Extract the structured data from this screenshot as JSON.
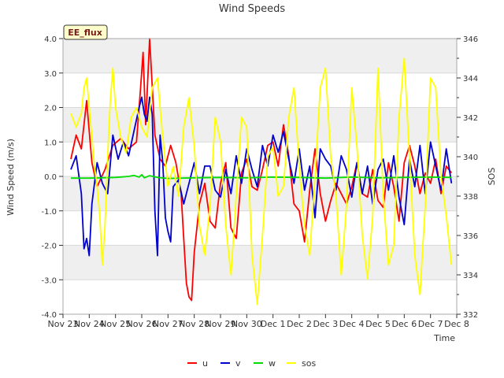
{
  "chart_data": {
    "type": "line",
    "title": "Wind Speeds",
    "badge": "EE_flux",
    "xlabel": "Time",
    "ylabel": "Wind Speed (m/s)",
    "y2label": "SOS",
    "ylim": [
      -4,
      4
    ],
    "y2lim": [
      332,
      346
    ],
    "xlim": [
      0,
      15
    ],
    "x_ticks": [
      {
        "x": 0,
        "label": "Nov 23"
      },
      {
        "x": 1,
        "label": "Nov 24"
      },
      {
        "x": 2,
        "label": "Nov 25"
      },
      {
        "x": 3,
        "label": "Nov 26"
      },
      {
        "x": 4,
        "label": "Nov 27"
      },
      {
        "x": 5,
        "label": "Nov 28"
      },
      {
        "x": 6,
        "label": "Nov 29"
      },
      {
        "x": 7,
        "label": "Nov 30"
      },
      {
        "x": 8,
        "label": "Dec 1"
      },
      {
        "x": 9,
        "label": "Dec 2"
      },
      {
        "x": 10,
        "label": "Dec 3"
      },
      {
        "x": 11,
        "label": "Dec 4"
      },
      {
        "x": 12,
        "label": "Dec 5"
      },
      {
        "x": 13,
        "label": "Dec 6"
      },
      {
        "x": 14,
        "label": "Dec 7"
      },
      {
        "x": 15,
        "label": "Dec 8"
      }
    ],
    "y_ticks": [
      {
        "v": 4,
        "label": "4.0"
      },
      {
        "v": 3,
        "label": "3.0"
      },
      {
        "v": 2,
        "label": "2.0"
      },
      {
        "v": 1,
        "label": "1.0"
      },
      {
        "v": 0,
        "label": "0.0"
      },
      {
        "v": -1,
        "label": "-1.0"
      },
      {
        "v": -2,
        "label": "-2.0"
      },
      {
        "v": -3,
        "label": "-3.0"
      },
      {
        "v": -4,
        "label": "-4.0"
      }
    ],
    "y2_ticks": [
      {
        "v": 332,
        "label": "332"
      },
      {
        "v": 334,
        "label": "334"
      },
      {
        "v": 336,
        "label": "336"
      },
      {
        "v": 338,
        "label": "338"
      },
      {
        "v": 340,
        "label": "340"
      },
      {
        "v": 342,
        "label": "342"
      },
      {
        "v": 344,
        "label": "344"
      },
      {
        "v": 346,
        "label": "346"
      }
    ],
    "grid": true,
    "legend_position": "bottom-center",
    "series": [
      {
        "name": "u",
        "axis": "left",
        "color": "#ff0000",
        "x": [
          0.3,
          0.5,
          0.7,
          0.9,
          1.1,
          1.3,
          1.6,
          1.9,
          2.2,
          2.5,
          2.8,
          2.95,
          3.05,
          3.15,
          3.3,
          3.5,
          3.7,
          3.9,
          4.1,
          4.3,
          4.5,
          4.6,
          4.7,
          4.8,
          4.9,
          5.0,
          5.2,
          5.4,
          5.6,
          5.8,
          6.0,
          6.2,
          6.4,
          6.6,
          6.8,
          7.0,
          7.2,
          7.4,
          7.6,
          7.8,
          8.0,
          8.2,
          8.4,
          8.6,
          8.8,
          9.0,
          9.2,
          9.4,
          9.6,
          9.8,
          10.0,
          10.2,
          10.4,
          10.6,
          10.8,
          11.0,
          11.2,
          11.4,
          11.6,
          11.8,
          12.0,
          12.2,
          12.4,
          12.6,
          12.8,
          13.0,
          13.2,
          13.4,
          13.6,
          13.8,
          14.0,
          14.2,
          14.4,
          14.6,
          14.8
        ],
        "y": [
          0.5,
          1.2,
          0.8,
          2.2,
          0.4,
          -0.3,
          0.2,
          0.9,
          1.1,
          0.8,
          1.0,
          2.5,
          3.6,
          1.5,
          4.0,
          1.2,
          0.5,
          0.3,
          0.9,
          0.4,
          -0.5,
          -1.8,
          -3.1,
          -3.5,
          -3.6,
          -2.2,
          -0.8,
          -0.2,
          -1.3,
          -1.5,
          -0.2,
          0.4,
          -1.5,
          -1.8,
          0.1,
          0.5,
          -0.3,
          -0.4,
          0.2,
          0.9,
          1.0,
          0.3,
          1.5,
          0.6,
          -0.8,
          -1.0,
          -1.9,
          -0.4,
          0.8,
          -0.5,
          -1.3,
          -0.7,
          -0.2,
          -0.5,
          -0.8,
          -0.3,
          0.4,
          -0.5,
          -0.6,
          0.2,
          -0.7,
          -0.9,
          0.4,
          -0.3,
          -1.3,
          0.4,
          0.9,
          0.3,
          -0.5,
          0.1,
          -0.2,
          0.5,
          -0.5,
          0.3,
          0.1
        ]
      },
      {
        "name": "v",
        "axis": "left",
        "color": "#0000cc",
        "x": [
          0.3,
          0.5,
          0.7,
          0.8,
          0.9,
          1.0,
          1.1,
          1.3,
          1.5,
          1.7,
          1.9,
          2.1,
          2.3,
          2.5,
          2.7,
          2.9,
          3.0,
          3.1,
          3.2,
          3.3,
          3.4,
          3.5,
          3.6,
          3.7,
          3.8,
          3.9,
          4.0,
          4.1,
          4.2,
          4.4,
          4.6,
          4.8,
          5.0,
          5.2,
          5.4,
          5.6,
          5.8,
          6.0,
          6.2,
          6.4,
          6.6,
          6.8,
          7.0,
          7.2,
          7.4,
          7.6,
          7.8,
          8.0,
          8.2,
          8.4,
          8.6,
          8.8,
          9.0,
          9.2,
          9.4,
          9.6,
          9.8,
          10.0,
          10.2,
          10.4,
          10.6,
          10.8,
          11.0,
          11.2,
          11.4,
          11.6,
          11.8,
          12.0,
          12.2,
          12.4,
          12.6,
          12.8,
          13.0,
          13.2,
          13.4,
          13.6,
          13.8,
          14.0,
          14.2,
          14.4,
          14.6,
          14.8
        ],
        "y": [
          0.2,
          0.6,
          -0.5,
          -2.1,
          -1.8,
          -2.3,
          -0.8,
          0.4,
          -0.2,
          -0.5,
          1.2,
          0.5,
          1.0,
          0.6,
          1.3,
          2.0,
          2.3,
          1.8,
          1.6,
          2.3,
          1.8,
          -1.0,
          -2.3,
          1.2,
          0.4,
          -1.2,
          -1.6,
          -1.9,
          -0.3,
          -0.1,
          -0.8,
          -0.2,
          0.4,
          -0.5,
          0.3,
          0.3,
          -0.4,
          -0.6,
          0.2,
          -0.5,
          0.6,
          -0.2,
          0.8,
          0.2,
          -0.3,
          0.9,
          0.3,
          1.2,
          0.7,
          1.3,
          0.5,
          -0.2,
          0.8,
          -0.4,
          0.3,
          -1.2,
          0.8,
          0.5,
          0.3,
          -0.4,
          0.6,
          0.2,
          -0.6,
          0.4,
          -0.5,
          0.3,
          -0.8,
          0.2,
          0.5,
          -0.4,
          0.6,
          -0.6,
          -1.4,
          0.5,
          -0.3,
          0.9,
          -0.5,
          1.0,
          0.3,
          -0.4,
          0.8,
          -0.2
        ]
      },
      {
        "name": "w",
        "axis": "left",
        "color": "#00dd00",
        "x": [
          0.3,
          1.0,
          2.0,
          2.5,
          2.7,
          2.9,
          3.0,
          3.1,
          3.3,
          3.6,
          4.0,
          5.0,
          6.0,
          7.0,
          8.0,
          9.0,
          10.0,
          11.0,
          12.0,
          13.0,
          14.0,
          14.8
        ],
        "y": [
          -0.05,
          -0.05,
          -0.03,
          0.0,
          0.03,
          -0.02,
          0.05,
          -0.04,
          0.02,
          -0.03,
          -0.06,
          -0.04,
          -0.03,
          -0.04,
          -0.02,
          -0.03,
          -0.05,
          -0.02,
          -0.04,
          -0.03,
          -0.02,
          -0.03
        ]
      },
      {
        "name": "sos",
        "axis": "right",
        "color": "#ffff00",
        "x": [
          0.3,
          0.5,
          0.7,
          0.8,
          0.9,
          1.0,
          1.1,
          1.2,
          1.3,
          1.4,
          1.5,
          1.6,
          1.7,
          1.8,
          1.9,
          2.0,
          2.2,
          2.4,
          2.6,
          2.8,
          3.0,
          3.2,
          3.4,
          3.6,
          3.8,
          4.0,
          4.2,
          4.4,
          4.6,
          4.8,
          5.0,
          5.2,
          5.4,
          5.6,
          5.8,
          6.0,
          6.2,
          6.4,
          6.6,
          6.8,
          7.0,
          7.2,
          7.4,
          7.6,
          7.8,
          8.0,
          8.2,
          8.4,
          8.6,
          8.8,
          9.0,
          9.2,
          9.4,
          9.6,
          9.8,
          10.0,
          10.2,
          10.4,
          10.6,
          10.8,
          11.0,
          11.2,
          11.4,
          11.6,
          11.8,
          12.0,
          12.2,
          12.4,
          12.6,
          12.8,
          13.0,
          13.2,
          13.4,
          13.6,
          13.8,
          14.0,
          14.2,
          14.4,
          14.6,
          14.8
        ],
        "y": [
          342.2,
          341.5,
          342.2,
          343.5,
          344.0,
          342.5,
          341.0,
          339.5,
          338.5,
          337.0,
          334.5,
          336.5,
          340.0,
          342.8,
          344.5,
          342.5,
          341.0,
          340.2,
          342.0,
          342.5,
          341.5,
          341.0,
          343.5,
          344.0,
          341.0,
          338.5,
          339.5,
          338.0,
          341.5,
          343.0,
          340.5,
          336.5,
          335.0,
          337.5,
          342.0,
          340.8,
          336.5,
          334.0,
          338.0,
          342.0,
          341.5,
          335.0,
          332.5,
          336.0,
          340.0,
          340.5,
          338.0,
          338.5,
          342.0,
          343.5,
          339.5,
          336.5,
          335.0,
          339.0,
          343.5,
          344.5,
          340.0,
          338.0,
          334.0,
          337.5,
          343.5,
          340.5,
          336.0,
          333.8,
          337.0,
          344.5,
          338.0,
          334.5,
          335.5,
          342.0,
          345.0,
          340.0,
          335.0,
          333.0,
          337.5,
          344.0,
          343.5,
          339.0,
          337.0,
          334.5
        ]
      }
    ]
  }
}
